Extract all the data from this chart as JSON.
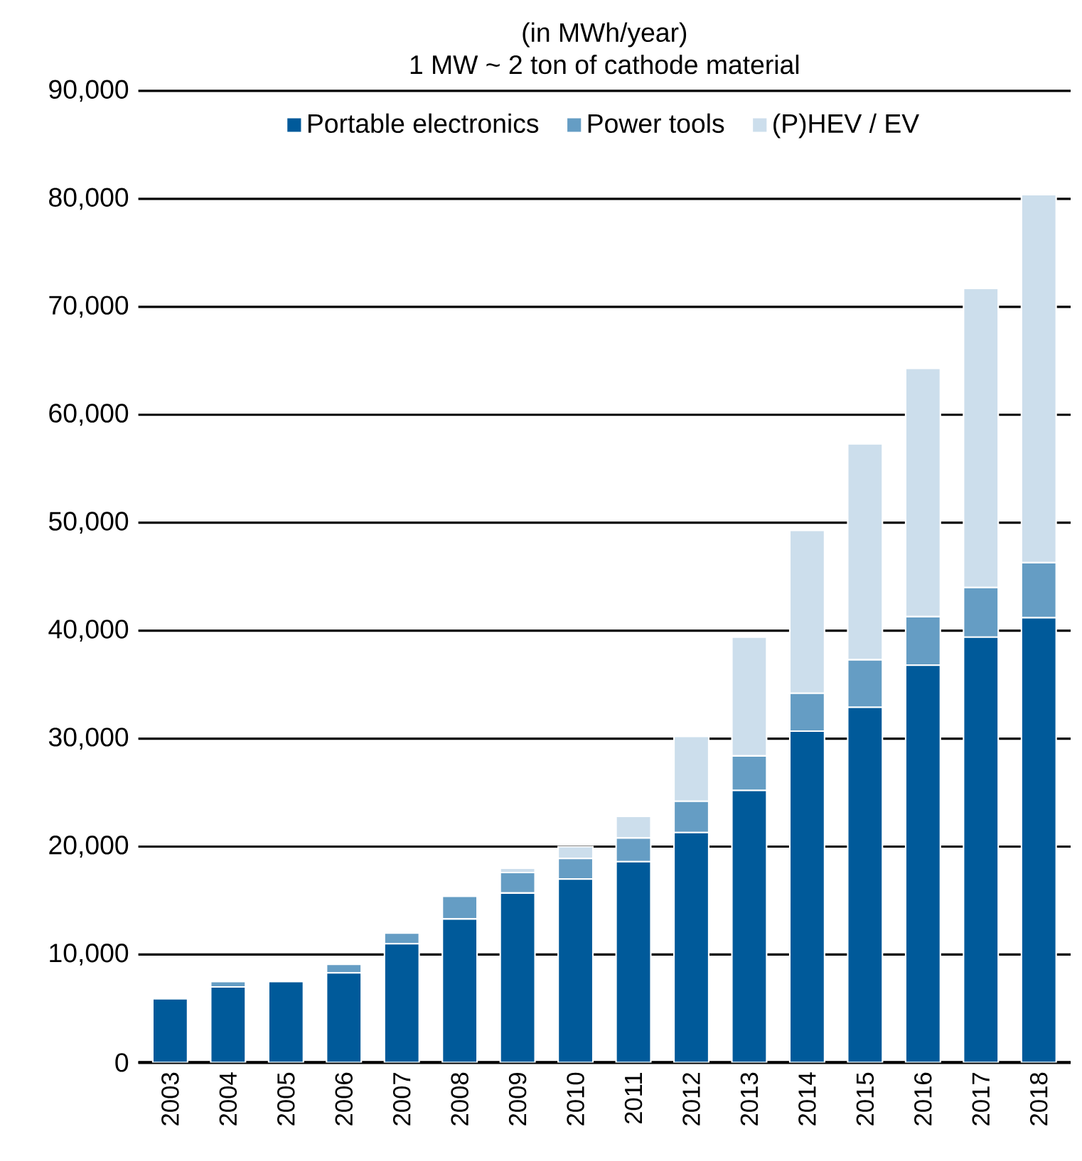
{
  "chart_data": {
    "type": "bar",
    "title": "(in MWh/year)",
    "subtitle": "1 MW ~  2 ton  of cathode material",
    "categories": [
      "2003",
      "2004",
      "2005",
      "2006",
      "2007",
      "2008",
      "2009",
      "2010",
      "2011",
      "2012",
      "2013",
      "2014",
      "2015",
      "2016",
      "2017",
      "2018"
    ],
    "series": [
      {
        "name": "Portable electronics",
        "color": "#005a9a",
        "values": [
          5900,
          7000,
          7500,
          8300,
          11000,
          13300,
          15700,
          17000,
          18600,
          21300,
          25200,
          30700,
          32900,
          36800,
          39400,
          41200
        ]
      },
      {
        "name": "Power tools",
        "color": "#659dc4",
        "values": [
          0,
          500,
          0,
          800,
          1000,
          2100,
          1900,
          1900,
          2200,
          2900,
          3200,
          3500,
          4400,
          4500,
          4600,
          5100
        ]
      },
      {
        "name": "(P)HEV / EV",
        "color": "#ccdeec",
        "values": [
          0,
          0,
          0,
          0,
          0,
          0,
          400,
          1100,
          2000,
          6000,
          11000,
          15100,
          20000,
          23000,
          27700,
          34100
        ]
      }
    ],
    "stacked": true,
    "ylim": [
      0,
      90000
    ],
    "yticks": [
      {
        "value": 0,
        "label": "0"
      },
      {
        "value": 10000,
        "label": "10,000"
      },
      {
        "value": 20000,
        "label": "20,000"
      },
      {
        "value": 30000,
        "label": "30,000"
      },
      {
        "value": 40000,
        "label": "40,000"
      },
      {
        "value": 50000,
        "label": "50,000"
      },
      {
        "value": 60000,
        "label": "60,000"
      },
      {
        "value": 70000,
        "label": "70,000"
      },
      {
        "value": 80000,
        "label": "80,000"
      },
      {
        "value": 90000,
        "label": "90,000"
      }
    ],
    "grid": "y",
    "legend": "top"
  }
}
